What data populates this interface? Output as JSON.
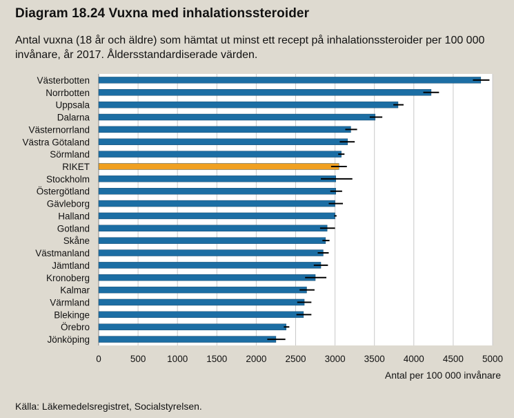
{
  "title": "Diagram 18.24 Vuxna med inhalationssteroider",
  "subtitle": "Antal vuxna (18 år och äldre) som hämtat ut minst ett recept på inhalationssteroider per 100 000 invånare, år 2017. Åldersstandardiserade värden.",
  "source": "Källa: Läkemedelsregistret, Socialstyrelsen.",
  "colors": {
    "bar": "#1c6ea4",
    "highlight": "#f0a020",
    "background": "#dedad0",
    "plot": "#ffffff"
  },
  "chart_data": {
    "type": "bar",
    "orientation": "horizontal",
    "xlabel": "Antal per 100 000 invånare",
    "xlim": [
      0,
      5000
    ],
    "xticks": [
      0,
      500,
      1000,
      1500,
      2000,
      2500,
      3000,
      3500,
      4000,
      4500,
      5000
    ],
    "grid": true,
    "highlight_category": "RIKET",
    "categories": [
      "Västerbotten",
      "Norrbotten",
      "Uppsala",
      "Dalarna",
      "Västernorrland",
      "Västra Götaland",
      "Sörmland",
      "RIKET",
      "Stockholm",
      "Östergötland",
      "Gävleborg",
      "Halland",
      "Gotland",
      "Skåne",
      "Västmanland",
      "Jämtland",
      "Kronoberg",
      "Kalmar",
      "Värmland",
      "Blekinge",
      "Örebro",
      "Jönköping"
    ],
    "values": [
      4850,
      4220,
      3800,
      3510,
      3200,
      3160,
      3080,
      3050,
      3010,
      3010,
      3000,
      3000,
      2900,
      2880,
      2850,
      2820,
      2750,
      2640,
      2610,
      2600,
      2380,
      2250
    ],
    "error_low": [
      4750,
      4120,
      3740,
      3440,
      3130,
      3060,
      3040,
      2950,
      2820,
      2940,
      2920,
      2990,
      2810,
      2840,
      2780,
      2730,
      2620,
      2550,
      2520,
      2510,
      2350,
      2140
    ],
    "error_high": [
      4960,
      4320,
      3870,
      3600,
      3280,
      3250,
      3120,
      3150,
      3220,
      3090,
      3100,
      3020,
      3000,
      2930,
      2920,
      2910,
      2890,
      2740,
      2700,
      2700,
      2420,
      2370
    ]
  }
}
